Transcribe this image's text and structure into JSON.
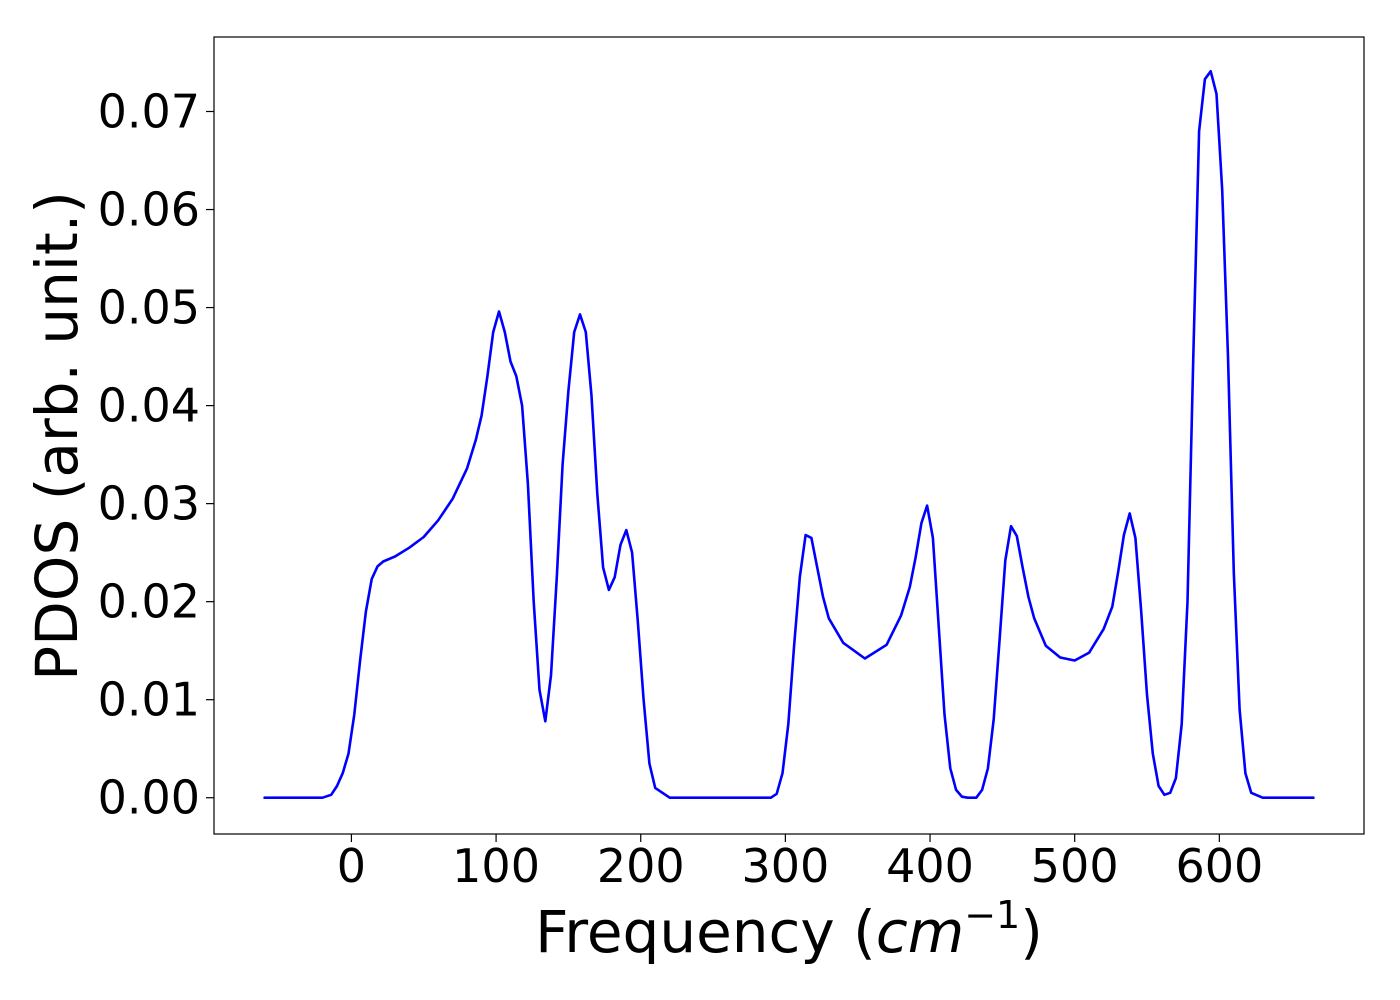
{
  "chart_data": {
    "type": "line",
    "xlabel_prefix": "Frequency (",
    "xlabel_var": "cm",
    "xlabel_exp": "−1",
    "xlabel_suffix": ")",
    "ylabel": "PDOS (arb. unit.)",
    "xlim": [
      -95,
      700
    ],
    "ylim": [
      -0.0037,
      0.0776
    ],
    "xticks": [
      0,
      100,
      200,
      300,
      400,
      500,
      600
    ],
    "xtick_labels": [
      "0",
      "100",
      "200",
      "300",
      "400",
      "500",
      "600"
    ],
    "yticks": [
      0.0,
      0.01,
      0.02,
      0.03,
      0.04,
      0.05,
      0.06,
      0.07
    ],
    "ytick_labels": [
      "0.00",
      "0.01",
      "0.02",
      "0.03",
      "0.04",
      "0.05",
      "0.06",
      "0.07"
    ],
    "grid": false,
    "series": [
      {
        "color": "#0000ff",
        "x": [
          -60,
          -20,
          -14,
          -10,
          -6,
          -2,
          2,
          6,
          10,
          14,
          18,
          22,
          30,
          40,
          50,
          60,
          70,
          80,
          86,
          90,
          94,
          98,
          102,
          106,
          110,
          114,
          118,
          122,
          126,
          130,
          134,
          138,
          142,
          146,
          150,
          154,
          158,
          162,
          166,
          170,
          174,
          178,
          182,
          186,
          190,
          194,
          198,
          202,
          206,
          210,
          220,
          290,
          294,
          298,
          302,
          306,
          310,
          314,
          318,
          322,
          326,
          330,
          340,
          355,
          370,
          380,
          386,
          390,
          394,
          398,
          402,
          406,
          410,
          414,
          418,
          422,
          426,
          432,
          436,
          440,
          444,
          448,
          452,
          456,
          460,
          464,
          468,
          472,
          480,
          490,
          500,
          510,
          520,
          526,
          530,
          534,
          538,
          542,
          546,
          550,
          554,
          558,
          562,
          566,
          570,
          574,
          578,
          582,
          586,
          590,
          594,
          598,
          602,
          606,
          610,
          614,
          618,
          622,
          630,
          665
        ],
        "y": [
          0.0,
          0.0,
          0.0003,
          0.0012,
          0.0025,
          0.0045,
          0.0085,
          0.014,
          0.019,
          0.0223,
          0.0236,
          0.0241,
          0.0246,
          0.0255,
          0.0266,
          0.0283,
          0.0305,
          0.0336,
          0.0365,
          0.039,
          0.043,
          0.0475,
          0.0496,
          0.0475,
          0.0445,
          0.043,
          0.04,
          0.032,
          0.02,
          0.011,
          0.0078,
          0.0125,
          0.0225,
          0.034,
          0.0415,
          0.0475,
          0.0493,
          0.0475,
          0.041,
          0.031,
          0.0235,
          0.0212,
          0.0225,
          0.0258,
          0.0273,
          0.025,
          0.018,
          0.01,
          0.0035,
          0.001,
          0.0,
          0.0,
          0.0004,
          0.0025,
          0.0075,
          0.0155,
          0.0225,
          0.0268,
          0.0265,
          0.0235,
          0.0205,
          0.0183,
          0.0158,
          0.0142,
          0.0156,
          0.0186,
          0.0215,
          0.0245,
          0.028,
          0.0298,
          0.0265,
          0.0175,
          0.0085,
          0.003,
          0.0008,
          0.0001,
          0.0,
          0.0,
          0.0008,
          0.003,
          0.008,
          0.016,
          0.0242,
          0.0277,
          0.0267,
          0.0235,
          0.0205,
          0.0183,
          0.0155,
          0.0143,
          0.014,
          0.0148,
          0.0172,
          0.0195,
          0.023,
          0.0268,
          0.029,
          0.0265,
          0.019,
          0.0105,
          0.0045,
          0.0012,
          0.0003,
          0.0005,
          0.002,
          0.0075,
          0.02,
          0.045,
          0.068,
          0.0733,
          0.0741,
          0.0718,
          0.062,
          0.045,
          0.023,
          0.009,
          0.0025,
          0.0005,
          0.0,
          0.0
        ]
      }
    ]
  }
}
